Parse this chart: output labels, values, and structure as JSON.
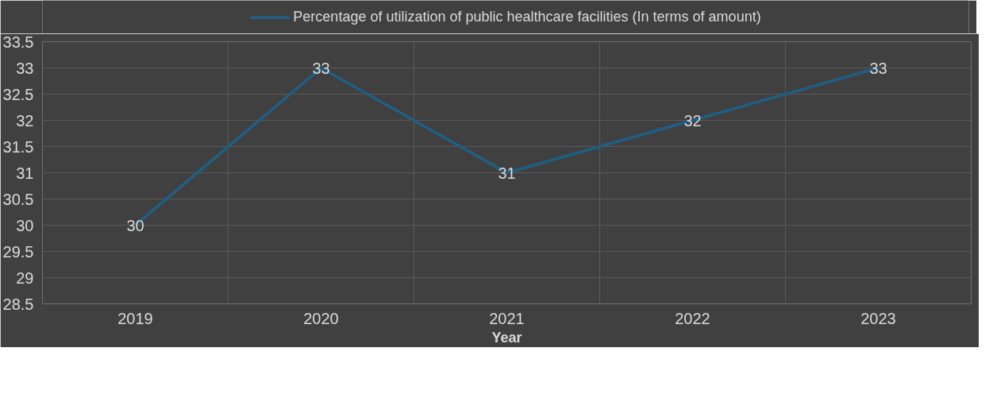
{
  "chart_data": {
    "type": "line",
    "xlabel": "Year",
    "categories": [
      "2019",
      "2020",
      "2021",
      "2022",
      "2023"
    ],
    "series": [
      {
        "name": "Percentage of utilization of public healthcare facilities (In terms of amount)",
        "color": "#1f5f85",
        "values": [
          30,
          33,
          31,
          32,
          33
        ]
      }
    ],
    "ylim": [
      28.5,
      33.5
    ],
    "yticks": [
      28.5,
      29,
      29.5,
      30,
      30.5,
      31,
      31.5,
      32,
      32.5,
      33,
      33.5
    ],
    "grid": true,
    "legend": "top",
    "data_labels": true,
    "marker": "none",
    "line_style": "solid"
  }
}
